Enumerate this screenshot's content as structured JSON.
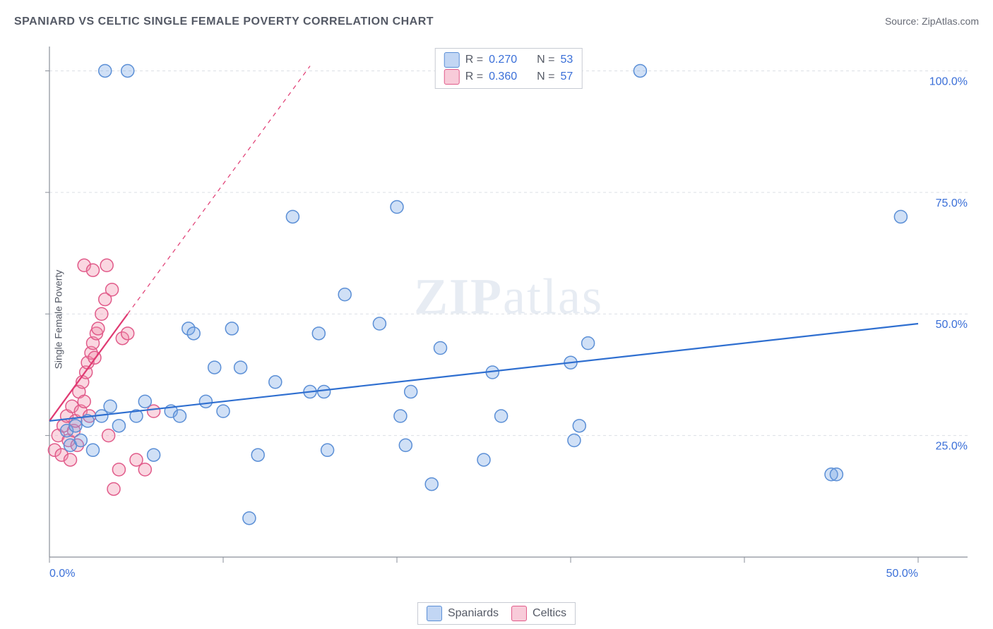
{
  "header": {
    "title": "SPANIARD VS CELTIC SINGLE FEMALE POVERTY CORRELATION CHART",
    "source_label": "Source:",
    "source_value": "ZipAtlas.com"
  },
  "ylabel": "Single Female Poverty",
  "watermark_bold": "ZIP",
  "watermark_rest": "atlas",
  "chart": {
    "type": "scatter",
    "background_color": "#ffffff",
    "grid_color": "#dcdfe5",
    "axis_color": "#8a8f99",
    "tick_color": "#8a8f99",
    "xlim": [
      0,
      50
    ],
    "ylim": [
      0,
      105
    ],
    "xticks": [
      0,
      10,
      20,
      30,
      40,
      50
    ],
    "yticks": [
      25,
      50,
      75,
      100
    ],
    "xtick_labels": {
      "0": "0.0%",
      "50": "50.0%"
    },
    "ytick_labels": {
      "25": "25.0%",
      "50": "50.0%",
      "75": "75.0%",
      "100": "100.0%"
    },
    "marker_radius": 9,
    "marker_stroke_width": 1.5,
    "line_width": 2.2,
    "series": [
      {
        "name": "Spaniards",
        "fill": "rgba(120,165,230,0.35)",
        "stroke": "#5b8fd6",
        "line_color": "#2f6fd0",
        "R": "0.270",
        "N": "53",
        "trend": {
          "x1": 0,
          "y1": 28,
          "x2": 50,
          "y2": 48,
          "dash_after_x": 50
        },
        "points": [
          [
            1,
            26
          ],
          [
            1.5,
            27
          ],
          [
            1.2,
            23
          ],
          [
            1.8,
            24
          ],
          [
            2.2,
            28
          ],
          [
            2.5,
            22
          ],
          [
            3,
            29
          ],
          [
            3.5,
            31
          ],
          [
            4,
            27
          ],
          [
            5,
            29
          ],
          [
            5.5,
            32
          ],
          [
            6,
            21
          ],
          [
            7,
            30
          ],
          [
            7.5,
            29
          ],
          [
            8,
            47
          ],
          [
            8.3,
            46
          ],
          [
            9,
            32
          ],
          [
            9.5,
            39
          ],
          [
            10,
            30
          ],
          [
            10.5,
            47
          ],
          [
            11,
            39
          ],
          [
            11.5,
            8
          ],
          [
            12,
            21
          ],
          [
            13,
            36
          ],
          [
            14,
            70
          ],
          [
            15,
            34
          ],
          [
            15.5,
            46
          ],
          [
            15.8,
            34
          ],
          [
            16,
            22
          ],
          [
            17,
            54
          ],
          [
            19,
            48
          ],
          [
            20,
            72
          ],
          [
            20.5,
            23
          ],
          [
            20.8,
            34
          ],
          [
            20.2,
            29
          ],
          [
            22,
            15
          ],
          [
            22.5,
            43
          ],
          [
            25,
            20
          ],
          [
            25.5,
            38
          ],
          [
            26,
            29
          ],
          [
            30,
            40
          ],
          [
            30.5,
            27
          ],
          [
            30.2,
            24
          ],
          [
            31,
            44
          ],
          [
            34,
            100
          ],
          [
            45,
            17
          ],
          [
            45.3,
            17
          ],
          [
            49,
            70
          ],
          [
            3.2,
            100
          ],
          [
            4.5,
            100
          ]
        ]
      },
      {
        "name": "Celtics",
        "fill": "rgba(240,140,170,0.35)",
        "stroke": "#e15b8a",
        "line_color": "#e03a72",
        "R": "0.360",
        "N": "57",
        "trend": {
          "x1": 0,
          "y1": 28,
          "x2": 4.5,
          "y2": 50,
          "dash_after_x": 4.5,
          "dash_x2": 15,
          "dash_y2": 101
        },
        "points": [
          [
            0.3,
            22
          ],
          [
            0.5,
            25
          ],
          [
            0.7,
            21
          ],
          [
            0.8,
            27
          ],
          [
            1,
            29
          ],
          [
            1.1,
            24
          ],
          [
            1.2,
            20
          ],
          [
            1.3,
            31
          ],
          [
            1.4,
            26
          ],
          [
            1.5,
            28
          ],
          [
            1.6,
            23
          ],
          [
            1.7,
            34
          ],
          [
            1.8,
            30
          ],
          [
            1.9,
            36
          ],
          [
            2,
            32
          ],
          [
            2.1,
            38
          ],
          [
            2.2,
            40
          ],
          [
            2.3,
            29
          ],
          [
            2.4,
            42
          ],
          [
            2.5,
            44
          ],
          [
            2.6,
            41
          ],
          [
            2.7,
            46
          ],
          [
            2.8,
            47
          ],
          [
            3,
            50
          ],
          [
            3.2,
            53
          ],
          [
            3.3,
            60
          ],
          [
            3.4,
            25
          ],
          [
            3.6,
            55
          ],
          [
            3.7,
            14
          ],
          [
            4,
            18
          ],
          [
            4.2,
            45
          ],
          [
            4.5,
            46
          ],
          [
            5,
            20
          ],
          [
            5.5,
            18
          ],
          [
            6,
            30
          ],
          [
            2.0,
            60
          ],
          [
            2.5,
            59
          ]
        ]
      }
    ]
  },
  "legend_top": {
    "rows": [
      {
        "swatch_fill": "rgba(120,165,230,0.45)",
        "swatch_stroke": "#5b8fd6",
        "R_label": "R =",
        "R": "0.270",
        "N_label": "N =",
        "N": "53"
      },
      {
        "swatch_fill": "rgba(240,140,170,0.45)",
        "swatch_stroke": "#e15b8a",
        "R_label": "R =",
        "R": "0.360",
        "N_label": "N =",
        "N": "57"
      }
    ]
  },
  "legend_bottom": {
    "items": [
      {
        "swatch_fill": "rgba(120,165,230,0.45)",
        "swatch_stroke": "#5b8fd6",
        "label": "Spaniards"
      },
      {
        "swatch_fill": "rgba(240,140,170,0.45)",
        "swatch_stroke": "#e15b8a",
        "label": "Celtics"
      }
    ]
  }
}
